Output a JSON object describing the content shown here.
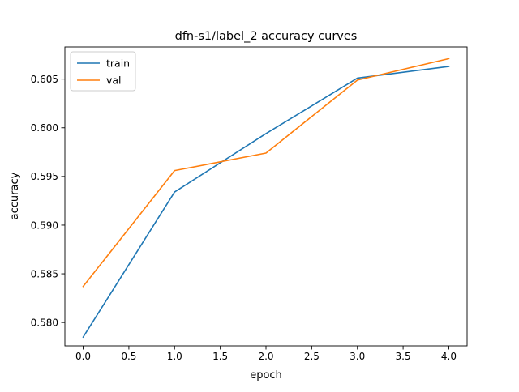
{
  "chart_data": {
    "type": "line",
    "title": "dfn-s1/label_2 accuracy curves",
    "xlabel": "epoch",
    "ylabel": "accuracy",
    "xlim": [
      -0.2,
      4.2
    ],
    "ylim": [
      0.5776,
      0.6083
    ],
    "x_ticks": [
      0.0,
      0.5,
      1.0,
      1.5,
      2.0,
      2.5,
      3.0,
      3.5,
      4.0
    ],
    "x_tick_labels": [
      "0.0",
      "0.5",
      "1.0",
      "1.5",
      "2.0",
      "2.5",
      "3.0",
      "3.5",
      "4.0"
    ],
    "y_ticks": [
      0.58,
      0.585,
      0.59,
      0.595,
      0.6,
      0.605
    ],
    "y_tick_labels": [
      "0.580",
      "0.585",
      "0.590",
      "0.595",
      "0.600",
      "0.605"
    ],
    "grid": false,
    "legend_position": "top-left",
    "x": [
      0,
      1,
      2,
      3,
      4
    ],
    "series": [
      {
        "name": "train",
        "color": "#1f77b4",
        "values": [
          0.5785,
          0.5934,
          0.5994,
          0.6051,
          0.6063
        ]
      },
      {
        "name": "val",
        "color": "#ff7f0e",
        "values": [
          0.5837,
          0.5956,
          0.5974,
          0.6049,
          0.6071
        ]
      }
    ]
  }
}
